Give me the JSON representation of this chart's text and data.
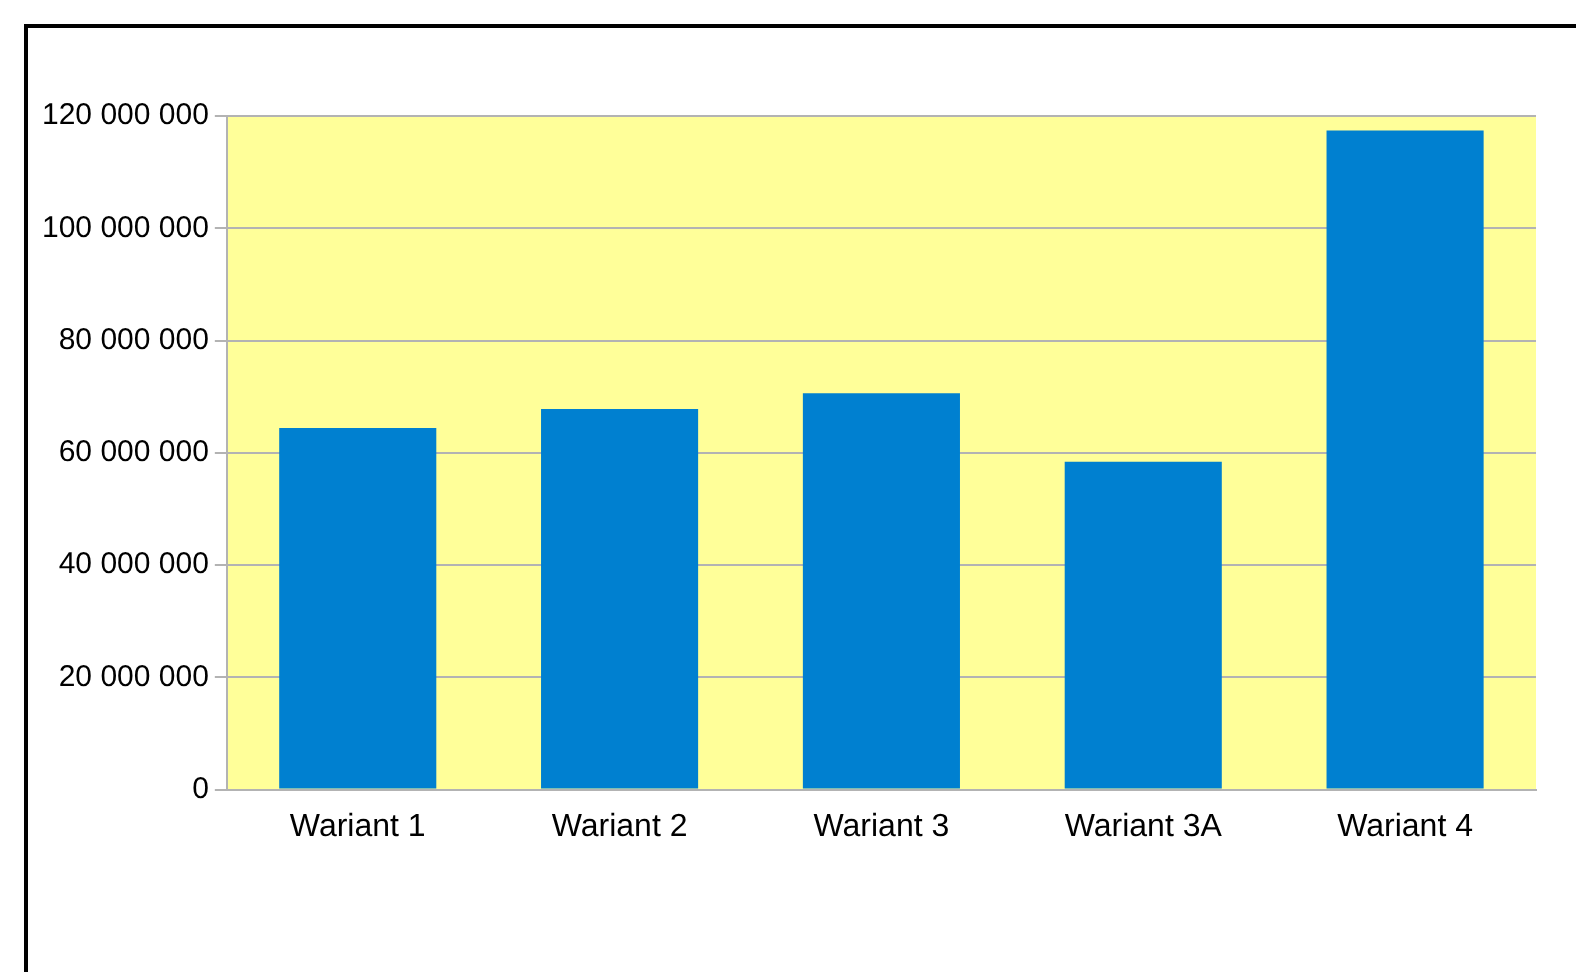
{
  "chart_data": {
    "type": "bar",
    "categories": [
      "Wariant 1",
      "Wariant 2",
      "Wariant 3",
      "Wariant 3A",
      "Wariant 4"
    ],
    "values": [
      64400000,
      67800000,
      70600000,
      58400000,
      117400000
    ],
    "color": "#0080d0",
    "ylim": [
      0,
      120000000
    ],
    "yticks": [
      {
        "value": 0,
        "label": "0"
      },
      {
        "value": 20000000,
        "label": "20 000 000"
      },
      {
        "value": 40000000,
        "label": "40 000 000"
      },
      {
        "value": 60000000,
        "label": "60 000 000"
      },
      {
        "value": 80000000,
        "label": "80 000 000"
      },
      {
        "value": 100000000,
        "label": "100 000 000"
      },
      {
        "value": 120000000,
        "label": "120 000 000"
      }
    ],
    "grid": "y",
    "legend": false
  }
}
